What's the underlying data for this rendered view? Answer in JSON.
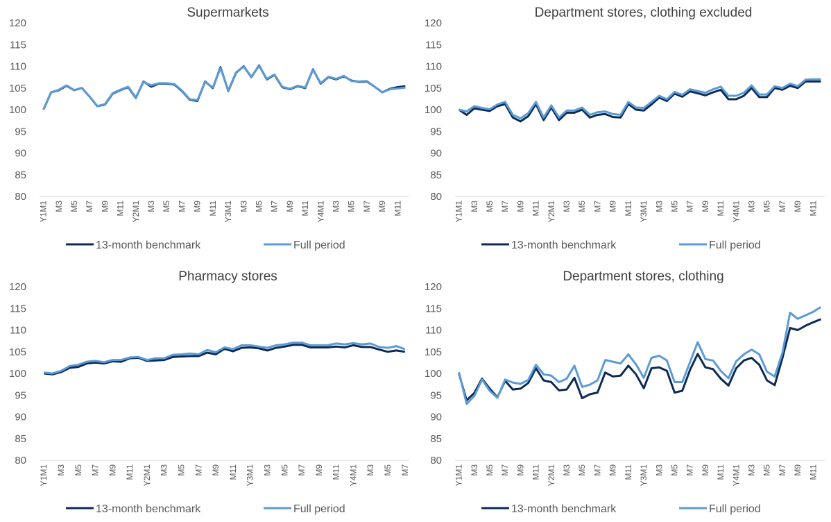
{
  "chart_data": [
    {
      "type": "line",
      "title": "Supermarkets",
      "categories": [
        "Y1M1",
        null,
        "M3",
        null,
        "M5",
        null,
        "M7",
        null,
        "M9",
        null,
        "M11",
        null,
        "Y2M1",
        null,
        "M3",
        null,
        "M5",
        null,
        "M7",
        null,
        "M9",
        null,
        "M11",
        null,
        "Y3M1",
        null,
        "M3",
        null,
        "M5",
        null,
        "M7",
        null,
        "M9",
        null,
        "M11",
        null,
        "Y4M1",
        null,
        "M3",
        null,
        "M5",
        null,
        "M7",
        null,
        "M9",
        null,
        "M11",
        null
      ],
      "series": [
        {
          "name": "13-month benchmark",
          "color": "#0d2a55",
          "values": [
            100,
            104,
            104.5,
            105.5,
            104.5,
            105,
            103,
            100.8,
            101.2,
            103.7,
            104.5,
            105.2,
            102.7,
            106.5,
            105.3,
            106,
            106,
            105.8,
            104.3,
            102.3,
            102,
            106.5,
            105,
            109.8,
            104.3,
            108.5,
            110,
            107.5,
            110.2,
            107,
            108,
            105.2,
            104.7,
            105.4,
            105,
            109.3,
            106,
            107.5,
            107,
            107.7,
            106.7,
            106.4,
            106.5,
            105.3,
            104,
            104.8,
            105.2,
            105.4
          ]
        },
        {
          "name": "Full period",
          "color": "#5b9bd5",
          "values": [
            100,
            104,
            104.6,
            105.6,
            104.5,
            105,
            103,
            100.8,
            101.3,
            103.8,
            104.6,
            105.3,
            102.8,
            106.4,
            105.6,
            106.1,
            106.1,
            105.9,
            104.4,
            102.4,
            102.2,
            106.4,
            105.1,
            109.6,
            104.4,
            108.6,
            109.9,
            107.6,
            110.1,
            107.1,
            108.1,
            105.3,
            104.8,
            105.5,
            105.1,
            109.2,
            106.1,
            107.6,
            107.1,
            107.8,
            106.6,
            106.5,
            106.6,
            105.3,
            104,
            104.7,
            104.9,
            105.1
          ]
        }
      ],
      "ylim": [
        80,
        120
      ],
      "yticks": [
        80,
        85,
        90,
        95,
        100,
        105,
        110,
        115,
        120
      ],
      "grid": false,
      "legend": "bottom"
    },
    {
      "type": "line",
      "title": "Department stores, clothing excluded",
      "categories": [
        "Y1M1",
        null,
        "M3",
        null,
        "M5",
        null,
        "M7",
        null,
        "M9",
        null,
        "M11",
        null,
        "Y2M1",
        null,
        "M3",
        null,
        "M5",
        null,
        "M7",
        null,
        "M9",
        null,
        "M11",
        null,
        "Y3M1",
        null,
        "M3",
        null,
        "M5",
        null,
        "M7",
        null,
        "M9",
        null,
        "M11",
        null,
        "Y4M1",
        null,
        "M3",
        null,
        "M5",
        null,
        "M7",
        null,
        "M9",
        null,
        "M11",
        null
      ],
      "series": [
        {
          "name": "13-month benchmark",
          "color": "#0d2a55",
          "values": [
            100,
            98.8,
            100.3,
            100,
            99.7,
            100.8,
            101.3,
            98.2,
            97.3,
            98.5,
            101.3,
            97.6,
            100.5,
            97.6,
            99.3,
            99.3,
            100,
            98.2,
            98.8,
            99,
            98.3,
            98.2,
            101.3,
            100,
            99.8,
            101.2,
            102.8,
            102,
            103.7,
            103,
            104.2,
            103.8,
            103.3,
            104,
            104.6,
            102.4,
            102.4,
            103.2,
            105,
            102.9,
            102.9,
            105,
            104.6,
            105.5,
            105,
            106.5,
            106.5,
            106.5
          ]
        },
        {
          "name": "Full period",
          "color": "#5b9bd5",
          "values": [
            100,
            99.6,
            100.8,
            100.4,
            100.1,
            101.2,
            101.8,
            98.8,
            98,
            99.2,
            101.8,
            98.2,
            101,
            98.2,
            99.8,
            99.8,
            100.5,
            98.8,
            99.4,
            99.6,
            99,
            98.8,
            101.8,
            100.5,
            100.4,
            101.8,
            103.2,
            102.4,
            104.1,
            103.4,
            104.7,
            104.3,
            103.9,
            104.7,
            105.3,
            103.2,
            103.2,
            103.9,
            105.6,
            103.5,
            103.5,
            105.4,
            105,
            106,
            105.4,
            106.9,
            107,
            107
          ]
        }
      ],
      "ylim": [
        80,
        120
      ],
      "yticks": [
        80,
        85,
        90,
        95,
        100,
        105,
        110,
        115,
        120
      ],
      "grid": false,
      "legend": "bottom"
    },
    {
      "type": "line",
      "title": "Pharmacy stores",
      "categories": [
        "Y1M1",
        null,
        "M3",
        null,
        "M5",
        null,
        "M7",
        null,
        "M9",
        null,
        "M11",
        null,
        "Y2M1",
        null,
        "M3",
        null,
        "M5",
        null,
        "M7",
        null,
        "M9",
        null,
        "M11",
        null,
        "Y3M1",
        null,
        "M3",
        null,
        "M5",
        null,
        "M7",
        null,
        "M9",
        null,
        "M11",
        null,
        "Y4M1",
        null,
        "M3",
        null,
        "M5",
        null,
        "M7"
      ],
      "series": [
        {
          "name": "13-month benchmark",
          "color": "#0d2a55",
          "values": [
            100,
            99.8,
            100.3,
            101.3,
            101.5,
            102.3,
            102.5,
            102.3,
            102.8,
            102.7,
            103.5,
            103.6,
            102.9,
            103,
            103.1,
            103.8,
            103.9,
            104,
            104,
            104.8,
            104.4,
            105.7,
            105.1,
            105.9,
            106,
            105.8,
            105.3,
            105.9,
            106.2,
            106.6,
            106.6,
            106,
            106,
            106,
            106.2,
            106,
            106.5,
            106.1,
            106.1,
            105.5,
            105,
            105.3,
            105
          ]
        },
        {
          "name": "Full period",
          "color": "#5b9bd5",
          "values": [
            100.2,
            100,
            100.6,
            101.7,
            102,
            102.7,
            102.9,
            102.6,
            103.1,
            103.1,
            103.7,
            103.8,
            103.1,
            103.5,
            103.5,
            104.3,
            104.4,
            104.6,
            104.4,
            105.4,
            104.9,
            106,
            105.6,
            106.5,
            106.5,
            106.2,
            105.9,
            106.5,
            106.7,
            107.1,
            107.1,
            106.5,
            106.5,
            106.5,
            106.9,
            106.7,
            107,
            106.7,
            106.9,
            106.1,
            105.9,
            106.3,
            105.6
          ]
        }
      ],
      "ylim": [
        80,
        120
      ],
      "yticks": [
        80,
        85,
        90,
        95,
        100,
        105,
        110,
        115,
        120
      ],
      "grid": false,
      "legend": "bottom"
    },
    {
      "type": "line",
      "title": "Department stores, clothing",
      "categories": [
        "Y1M1",
        null,
        "M3",
        null,
        "M5",
        null,
        "M7",
        null,
        "M9",
        null,
        "M11",
        null,
        "Y2M1",
        null,
        "M3",
        null,
        "M5",
        null,
        "M7",
        null,
        "M9",
        null,
        "M11",
        null,
        "Y3M1",
        null,
        "M3",
        null,
        "M5",
        null,
        "M7",
        null,
        "M9",
        null,
        "M11",
        null,
        "Y4M1",
        null,
        "M3",
        null,
        "M5",
        null,
        "M7",
        null,
        "M9",
        null,
        "M11",
        null
      ],
      "series": [
        {
          "name": "13-month benchmark",
          "color": "#0d2a55",
          "values": [
            100,
            93.8,
            95.5,
            98.8,
            96.5,
            94.5,
            98.3,
            96.3,
            96.5,
            97.8,
            101.2,
            98.4,
            98,
            96.1,
            96.3,
            99,
            94.3,
            95.2,
            95.6,
            100.2,
            99.3,
            99.5,
            101.8,
            99.8,
            96.6,
            101.2,
            101.4,
            100.6,
            95.6,
            96,
            100.8,
            104.5,
            101.4,
            101,
            98.8,
            97.2,
            101.2,
            103,
            103.6,
            102,
            98.4,
            97.3,
            103.5,
            110.5,
            110,
            111,
            111.8,
            112.5
          ]
        },
        {
          "name": "Full period",
          "color": "#5b9bd5",
          "values": [
            100.3,
            93,
            94.8,
            98.6,
            96,
            94.4,
            98.6,
            97.9,
            97.6,
            98.5,
            102,
            99.8,
            99.5,
            98,
            98.8,
            101.8,
            96.9,
            97.4,
            98.4,
            103.1,
            102.7,
            102.3,
            104.4,
            102.1,
            99,
            103.6,
            104.1,
            103,
            98,
            98,
            102.6,
            107.2,
            103.3,
            103,
            100.6,
            98.9,
            102.8,
            104.4,
            105.5,
            104.4,
            100.4,
            99.3,
            104.7,
            114,
            112.6,
            113.4,
            114.2,
            115.3
          ]
        }
      ],
      "ylim": [
        80,
        120
      ],
      "yticks": [
        80,
        85,
        90,
        95,
        100,
        105,
        110,
        115,
        120
      ],
      "grid": false,
      "legend": "bottom"
    }
  ]
}
